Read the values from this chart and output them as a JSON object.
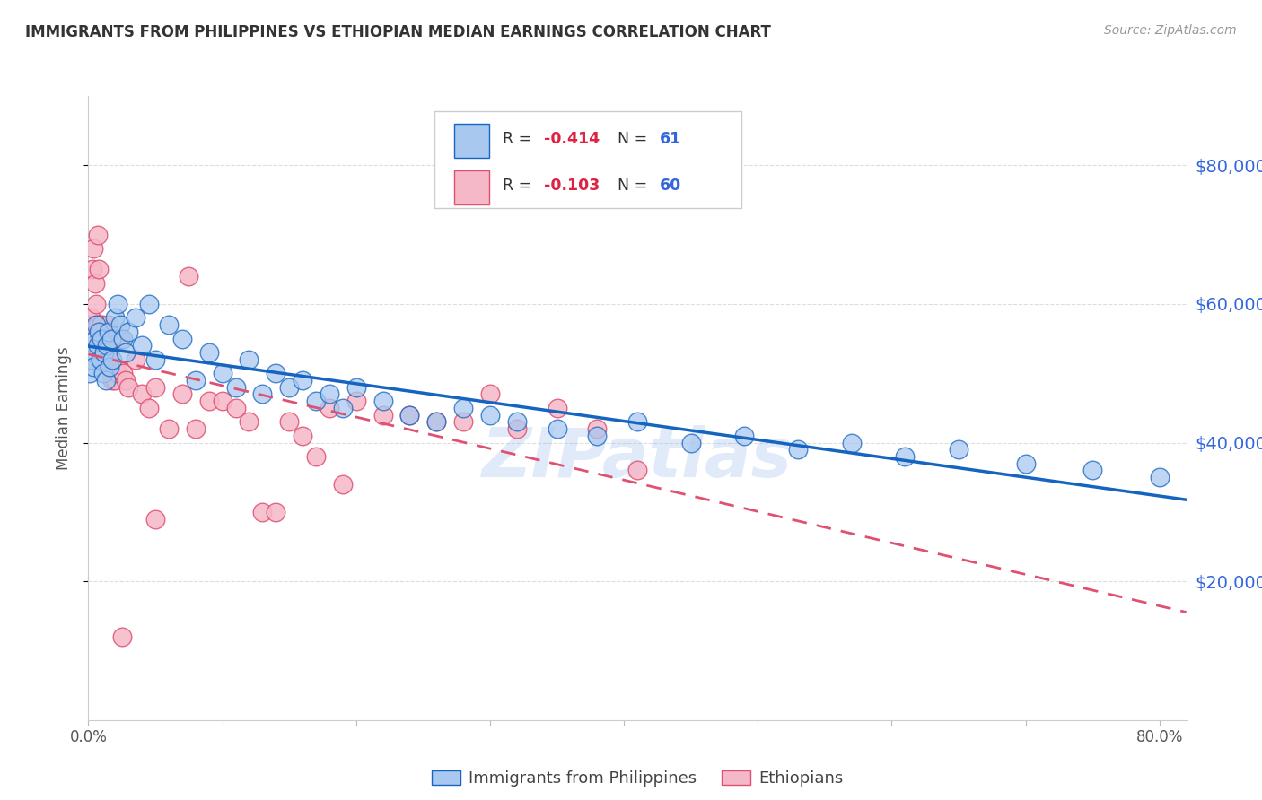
{
  "title": "IMMIGRANTS FROM PHILIPPINES VS ETHIOPIAN MEDIAN EARNINGS CORRELATION CHART",
  "source": "Source: ZipAtlas.com",
  "ylabel": "Median Earnings",
  "y_ticks": [
    20000,
    40000,
    60000,
    80000
  ],
  "y_tick_labels": [
    "$20,000",
    "$40,000",
    "$60,000",
    "$80,000"
  ],
  "y_min": 0,
  "y_max": 90000,
  "x_min": 0.0,
  "x_max": 0.82,
  "legend_r1": "-0.414",
  "legend_n1": "61",
  "legend_r2": "-0.103",
  "legend_n2": "60",
  "color_blue": "#a8c8f0",
  "color_pink": "#f5b8c8",
  "color_trendline_blue": "#1565c0",
  "color_trendline_pink": "#e05070",
  "color_title": "#333333",
  "color_source": "#999999",
  "color_axis_right": "#3366dd",
  "color_r_value": "#dd2244",
  "color_n_value": "#3366dd",
  "watermark": "ZIPatlas",
  "philippines_x": [
    0.001,
    0.002,
    0.003,
    0.004,
    0.005,
    0.006,
    0.007,
    0.008,
    0.009,
    0.01,
    0.011,
    0.012,
    0.013,
    0.014,
    0.015,
    0.016,
    0.017,
    0.018,
    0.02,
    0.022,
    0.024,
    0.026,
    0.028,
    0.03,
    0.035,
    0.04,
    0.045,
    0.05,
    0.06,
    0.07,
    0.08,
    0.09,
    0.1,
    0.11,
    0.12,
    0.13,
    0.14,
    0.15,
    0.16,
    0.17,
    0.18,
    0.19,
    0.2,
    0.22,
    0.24,
    0.26,
    0.28,
    0.3,
    0.32,
    0.35,
    0.38,
    0.41,
    0.45,
    0.49,
    0.53,
    0.57,
    0.61,
    0.65,
    0.7,
    0.75,
    0.8
  ],
  "philippines_y": [
    50000,
    52000,
    53000,
    51000,
    55000,
    57000,
    54000,
    56000,
    52000,
    55000,
    50000,
    53000,
    49000,
    54000,
    56000,
    51000,
    55000,
    52000,
    58000,
    60000,
    57000,
    55000,
    53000,
    56000,
    58000,
    54000,
    60000,
    52000,
    57000,
    55000,
    49000,
    53000,
    50000,
    48000,
    52000,
    47000,
    50000,
    48000,
    49000,
    46000,
    47000,
    45000,
    48000,
    46000,
    44000,
    43000,
    45000,
    44000,
    43000,
    42000,
    41000,
    43000,
    40000,
    41000,
    39000,
    40000,
    38000,
    39000,
    37000,
    36000,
    35000
  ],
  "ethiopians_x": [
    0.001,
    0.002,
    0.003,
    0.004,
    0.005,
    0.006,
    0.007,
    0.007,
    0.008,
    0.008,
    0.009,
    0.009,
    0.01,
    0.01,
    0.011,
    0.012,
    0.013,
    0.014,
    0.015,
    0.016,
    0.017,
    0.018,
    0.019,
    0.02,
    0.022,
    0.024,
    0.026,
    0.028,
    0.03,
    0.035,
    0.04,
    0.045,
    0.05,
    0.06,
    0.07,
    0.08,
    0.09,
    0.1,
    0.11,
    0.12,
    0.13,
    0.14,
    0.15,
    0.16,
    0.17,
    0.18,
    0.19,
    0.2,
    0.22,
    0.24,
    0.26,
    0.28,
    0.3,
    0.32,
    0.35,
    0.38,
    0.41,
    0.05,
    0.075,
    0.025
  ],
  "ethiopians_y": [
    57000,
    58000,
    65000,
    68000,
    63000,
    60000,
    57000,
    70000,
    55000,
    65000,
    57000,
    52000,
    55000,
    57000,
    53000,
    56000,
    52000,
    55000,
    57000,
    53000,
    50000,
    49000,
    55000,
    49000,
    50000,
    55000,
    50000,
    49000,
    48000,
    52000,
    47000,
    45000,
    48000,
    42000,
    47000,
    42000,
    46000,
    46000,
    45000,
    43000,
    30000,
    30000,
    43000,
    41000,
    38000,
    45000,
    34000,
    46000,
    44000,
    44000,
    43000,
    43000,
    47000,
    42000,
    45000,
    42000,
    36000,
    29000,
    64000,
    12000
  ]
}
